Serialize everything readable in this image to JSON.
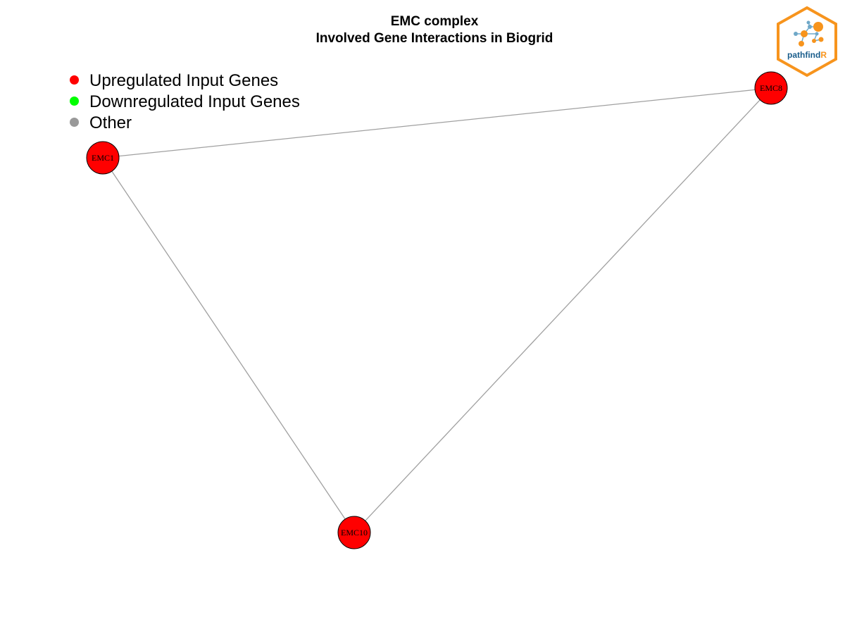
{
  "title": {
    "line1": "EMC complex",
    "line2": "Involved Gene Interactions in Biogrid"
  },
  "legend": [
    {
      "label": "Upregulated Input Genes",
      "color": "#FF0000"
    },
    {
      "label": "Downregulated Input Genes",
      "color": "#00FF00"
    },
    {
      "label": "Other",
      "color": "#999999"
    }
  ],
  "graph": {
    "nodes": [
      {
        "id": "EMC1",
        "label": "EMC1",
        "color": "#FF0000"
      },
      {
        "id": "EMC8",
        "label": "EMC8",
        "color": "#FF0000"
      },
      {
        "id": "EMC10",
        "label": "EMC10",
        "color": "#FF0000"
      }
    ],
    "edges": [
      {
        "source": "EMC1",
        "target": "EMC8"
      },
      {
        "source": "EMC1",
        "target": "EMC10"
      },
      {
        "source": "EMC8",
        "target": "EMC10"
      }
    ],
    "edge_color": "#A0A0A0"
  },
  "logo": {
    "name": "pathfindR-logo",
    "text_main": "pathfind",
    "text_accent": "R",
    "border_color": "#F7941D",
    "text_color": "#1B5E8C"
  }
}
